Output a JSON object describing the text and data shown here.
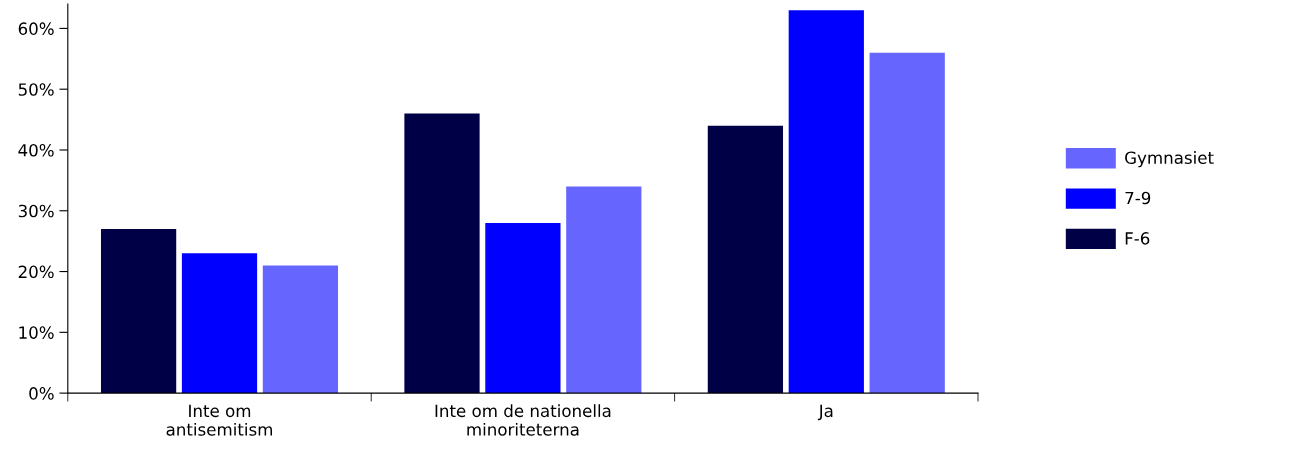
{
  "chart_data": {
    "type": "bar",
    "categories": [
      "Inte om\nantisemitism",
      "Inte om de nationella\nminoriteterna",
      "Ja"
    ],
    "series": [
      {
        "name": "F-6",
        "color": "#000046",
        "values": [
          27,
          46,
          44
        ]
      },
      {
        "name": "7-9",
        "color": "#0000ff",
        "values": [
          23,
          28,
          63
        ]
      },
      {
        "name": "Gymnasiet",
        "color": "#6666ff",
        "values": [
          21,
          34,
          56
        ]
      }
    ],
    "ylim": [
      0,
      64
    ],
    "yticks": [
      {
        "value": 0,
        "label": "0%"
      },
      {
        "value": 10,
        "label": "10%"
      },
      {
        "value": 20,
        "label": "20%"
      },
      {
        "value": 30,
        "label": "30%"
      },
      {
        "value": 40,
        "label": "40%"
      },
      {
        "value": 50,
        "label": "50%"
      },
      {
        "value": 60,
        "label": "60%"
      }
    ],
    "grid": false,
    "legend": "right"
  }
}
